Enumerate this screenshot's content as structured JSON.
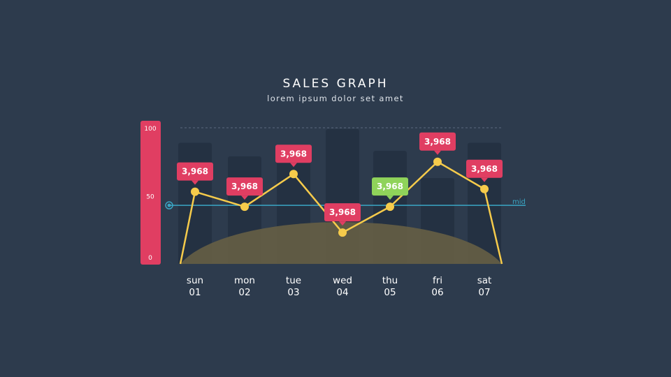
{
  "title": "SALES GRAPH",
  "subtitle": "lorem ipsum dolor set amet",
  "colors": {
    "background": "#2d3b4d",
    "axis_bar": "#e03e62",
    "bars": "#243142",
    "line": "#f6cb4b",
    "area": "#6a6244",
    "label_default": "#e03e62",
    "label_highlight": "#8fd35a",
    "mid_line": "#3aa6c4",
    "text": "#ffffff"
  },
  "chart_data": {
    "type": "line",
    "yaxis": {
      "ticks": [
        0,
        50,
        100
      ],
      "ylim": [
        0,
        100
      ]
    },
    "mid_label": "mid",
    "mid_value": 43,
    "categories": [
      {
        "day": "sun",
        "num": "01"
      },
      {
        "day": "mon",
        "num": "02"
      },
      {
        "day": "tue",
        "num": "03"
      },
      {
        "day": "wed",
        "num": "04"
      },
      {
        "day": "thu",
        "num": "05"
      },
      {
        "day": "fri",
        "num": "06"
      },
      {
        "day": "sat",
        "num": "07"
      }
    ],
    "line_values": [
      53,
      42,
      66,
      23,
      42,
      75,
      55
    ],
    "line_ends": {
      "start": 0,
      "end": 0
    },
    "bar_values": [
      89,
      79,
      86,
      99,
      83,
      63,
      89
    ],
    "labels": [
      {
        "text": "3,968",
        "highlight": false
      },
      {
        "text": "3,968",
        "highlight": false
      },
      {
        "text": "3,968",
        "highlight": false
      },
      {
        "text": "3,968",
        "highlight": false
      },
      {
        "text": "3,968",
        "highlight": true
      },
      {
        "text": "3,968",
        "highlight": false
      },
      {
        "text": "3,968",
        "highlight": false
      }
    ]
  }
}
